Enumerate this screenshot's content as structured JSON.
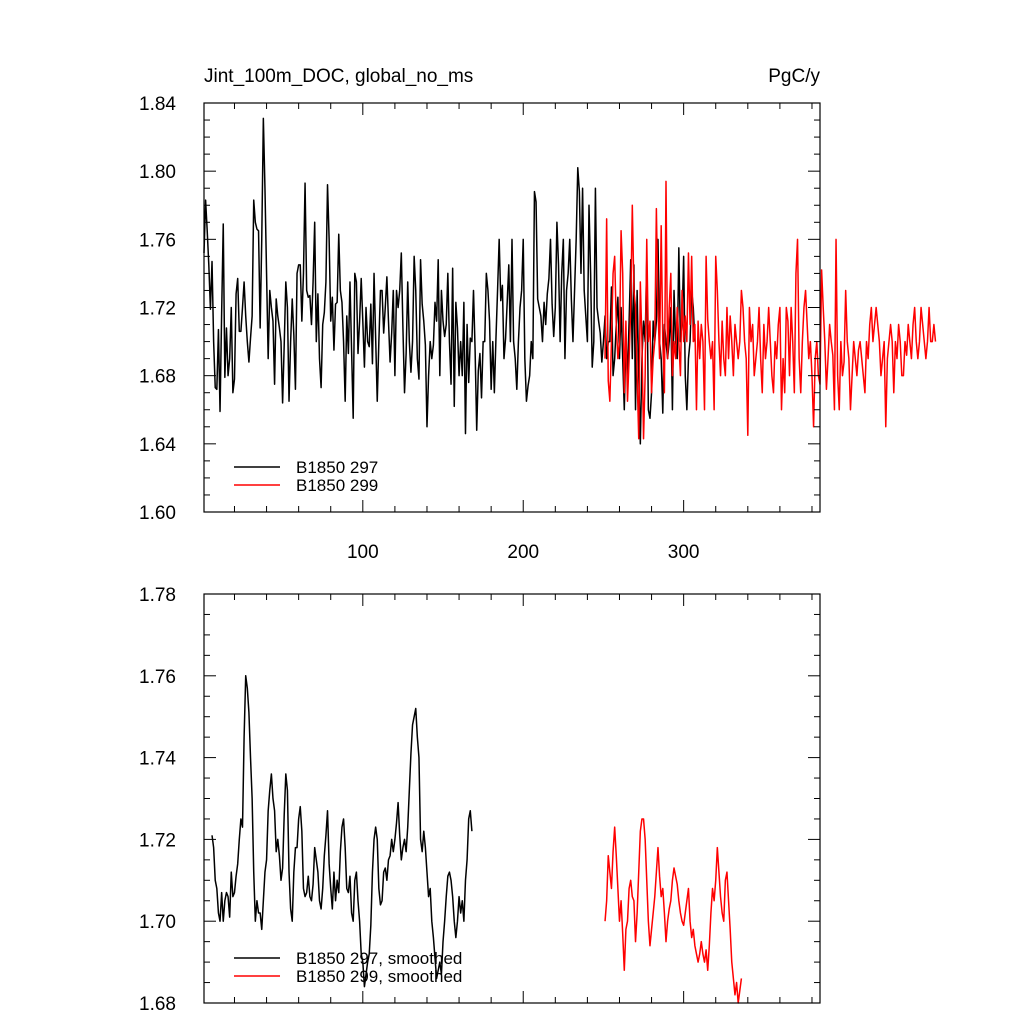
{
  "chart_data": [
    {
      "type": "line",
      "title": "Jint_100m_DOC, global_no_ms",
      "units": "PgC/y",
      "xlim": [
        1,
        385
      ],
      "ylim": [
        1.6,
        1.84
      ],
      "x_ticks": [
        100,
        200,
        300
      ],
      "x_tick_labels": [
        "100",
        "200",
        "300"
      ],
      "y_ticks": [
        1.6,
        1.64,
        1.68,
        1.72,
        1.76,
        1.8,
        1.84
      ],
      "y_tick_labels": [
        "1.60",
        "1.64",
        "1.68",
        "1.72",
        "1.76",
        "1.80",
        "1.84"
      ],
      "legend_position": "bottom-left",
      "series": [
        {
          "name": "B1850 297",
          "color": "#000000",
          "x_start": 1,
          "x_step": 1,
          "values": [
            1.752,
            1.783,
            1.765,
            1.745,
            1.719,
            1.747,
            1.7,
            1.673,
            1.672,
            1.707,
            1.659,
            1.717,
            1.769,
            1.679,
            1.708,
            1.68,
            1.69,
            1.72,
            1.67,
            1.678,
            1.728,
            1.737,
            1.706,
            1.706,
            1.72,
            1.735,
            1.715,
            1.7,
            1.688,
            1.702,
            1.715,
            1.783,
            1.77,
            1.766,
            1.765,
            1.708,
            1.76,
            1.831,
            1.79,
            1.74,
            1.69,
            1.73,
            1.72,
            1.712,
            1.675,
            1.725,
            1.715,
            1.708,
            1.7,
            1.664,
            1.698,
            1.735,
            1.72,
            1.665,
            1.7,
            1.725,
            1.704,
            1.672,
            1.74,
            1.745,
            1.745,
            1.712,
            1.74,
            1.793,
            1.73,
            1.726,
            1.727,
            1.71,
            1.735,
            1.77,
            1.7,
            1.728,
            1.69,
            1.673,
            1.71,
            1.717,
            1.735,
            1.792,
            1.76,
            1.712,
            1.726,
            1.695,
            1.722,
            1.723,
            1.763,
            1.73,
            1.723,
            1.7,
            1.665,
            1.715,
            1.693,
            1.735,
            1.695,
            1.655,
            1.74,
            1.735,
            1.693,
            1.712,
            1.737,
            1.712,
            1.685,
            1.72,
            1.7,
            1.697,
            1.722,
            1.687,
            1.74,
            1.702,
            1.665,
            1.7,
            1.73,
            1.73,
            1.705,
            1.72,
            1.738,
            1.712,
            1.688,
            1.705,
            1.73,
            1.68,
            1.73,
            1.72,
            1.73,
            1.752,
            1.708,
            1.67,
            1.693,
            1.735,
            1.7,
            1.682,
            1.7,
            1.75,
            1.73,
            1.69,
            1.678,
            1.748,
            1.722,
            1.712,
            1.698,
            1.65,
            1.68,
            1.7,
            1.69,
            1.698,
            1.723,
            1.712,
            1.748,
            1.68,
            1.73,
            1.712,
            1.703,
            1.71,
            1.74,
            1.7,
            1.675,
            1.743,
            1.662,
            1.723,
            1.708,
            1.68,
            1.7,
            1.68,
            1.723,
            1.646,
            1.71,
            1.676,
            1.702,
            1.7,
            1.73,
            1.695,
            1.648,
            1.683,
            1.693,
            1.667,
            1.7,
            1.7,
            1.74,
            1.73,
            1.712,
            1.672,
            1.7,
            1.67,
            1.702,
            1.73,
            1.76,
            1.724,
            1.733,
            1.69,
            1.702,
            1.723,
            1.745,
            1.7,
            1.76,
            1.7,
            1.69,
            1.672,
            1.7,
            1.72,
            1.73,
            1.76,
            1.69,
            1.665,
            1.674,
            1.68,
            1.7,
            1.69,
            1.788,
            1.782,
            1.725,
            1.72,
            1.715,
            1.7,
            1.723,
            1.71,
            1.728,
            1.737,
            1.76,
            1.722,
            1.703,
            1.72,
            1.77,
            1.745,
            1.7,
            1.74,
            1.76,
            1.69,
            1.73,
            1.74,
            1.76,
            1.725,
            1.7,
            1.73,
            1.76,
            1.802,
            1.788,
            1.74,
            1.79,
            1.73,
            1.715,
            1.7,
            1.78,
            1.74,
            1.685,
            1.7,
            1.79,
            1.72,
            1.712,
            1.705,
            1.688,
            1.7,
            1.715,
            1.69,
            1.7,
            1.7,
            1.732,
            1.68,
            1.69,
            1.71,
            1.726,
            1.69,
            1.72,
            1.69,
            1.66,
            1.7,
            1.68,
            1.712,
            1.748,
            1.69,
            1.745,
            1.66,
            1.73,
            1.68,
            1.64,
            1.69,
            1.712,
            1.7,
            1.748,
            1.66,
            1.655,
            1.67,
            1.712,
            1.7,
            1.712,
            1.76,
            1.7,
            1.69,
            1.658,
            1.71,
            1.7,
            1.69,
            1.7,
            1.72,
            1.66,
            1.73,
            1.7,
            1.69,
            1.755,
            1.7,
            1.712,
            1.75,
            1.68,
            1.66,
            1.69,
            1.7,
            1.73,
            1.72,
            1.7
          ]
        },
        {
          "name": "B1850 299",
          "color": "#ff0000",
          "x_start": 251,
          "x_step": 1,
          "values": [
            1.69,
            1.772,
            1.677,
            1.665,
            1.7,
            1.74,
            1.75,
            1.71,
            1.69,
            1.7,
            1.765,
            1.74,
            1.67,
            1.712,
            1.665,
            1.69,
            1.72,
            1.78,
            1.73,
            1.72,
            1.68,
            1.643,
            1.735,
            1.7,
            1.643,
            1.68,
            1.76,
            1.7,
            1.712,
            1.67,
            1.69,
            1.7,
            1.778,
            1.72,
            1.69,
            1.768,
            1.7,
            1.67,
            1.794,
            1.69,
            1.72,
            1.74,
            1.68,
            1.7,
            1.69,
            1.72,
            1.7,
            1.68,
            1.73,
            1.7,
            1.715,
            1.7,
            1.752,
            1.71,
            1.75,
            1.7,
            1.71,
            1.66,
            1.712,
            1.69,
            1.71,
            1.7,
            1.66,
            1.75,
            1.713,
            1.7,
            1.69,
            1.7,
            1.66,
            1.75,
            1.73,
            1.7,
            1.68,
            1.712,
            1.69,
            1.68,
            1.72,
            1.69,
            1.715,
            1.7,
            1.68,
            1.71,
            1.7,
            1.69,
            1.7,
            1.73,
            1.72,
            1.7,
            1.69,
            1.645,
            1.72,
            1.7,
            1.71,
            1.68,
            1.69,
            1.7,
            1.72,
            1.69,
            1.67,
            1.71,
            1.69,
            1.7,
            1.72,
            1.7,
            1.68,
            1.67,
            1.7,
            1.69,
            1.71,
            1.72,
            1.66,
            1.69,
            1.67,
            1.72,
            1.712,
            1.68,
            1.72,
            1.7,
            1.67,
            1.74,
            1.76,
            1.69,
            1.67,
            1.7,
            1.72,
            1.73,
            1.71,
            1.69,
            1.7,
            1.68,
            1.65,
            1.69,
            1.7,
            1.68,
            1.675,
            1.742,
            1.72,
            1.7,
            1.672,
            1.69,
            1.71,
            1.7,
            1.692,
            1.66,
            1.76,
            1.68,
            1.66,
            1.7,
            1.68,
            1.688,
            1.73,
            1.7,
            1.69,
            1.66,
            1.68,
            1.7,
            1.69,
            1.68,
            1.695,
            1.7,
            1.69,
            1.68,
            1.67,
            1.7,
            1.69,
            1.71,
            1.72,
            1.7,
            1.71,
            1.72,
            1.71,
            1.7,
            1.68,
            1.69,
            1.7,
            1.65,
            1.69,
            1.7,
            1.71,
            1.7,
            1.67,
            1.7,
            1.69,
            1.71,
            1.7,
            1.68,
            1.68,
            1.7,
            1.692,
            1.71,
            1.7,
            1.69,
            1.71,
            1.72,
            1.7,
            1.69,
            1.7,
            1.72,
            1.71,
            1.7,
            1.69,
            1.7,
            1.72,
            1.7,
            1.7,
            1.71,
            1.7
          ]
        }
      ]
    },
    {
      "type": "line",
      "xlim": [
        1,
        385
      ],
      "ylim": [
        1.68,
        1.78
      ],
      "x_ticks": [
        100,
        200,
        300
      ],
      "y_ticks": [
        1.68,
        1.7,
        1.72,
        1.74,
        1.76,
        1.78
      ],
      "y_tick_labels": [
        "1.68",
        "1.70",
        "1.72",
        "1.74",
        "1.76",
        "1.78"
      ],
      "legend_position": "bottom-left",
      "series": [
        {
          "name": "B1850 297, smoothed",
          "color": "#000000",
          "x_start": 6,
          "x_step": 1,
          "values": [
            1.721,
            1.718,
            1.71,
            1.708,
            1.702,
            1.7,
            1.707,
            1.7,
            1.705,
            1.707,
            1.706,
            1.701,
            1.712,
            1.706,
            1.707,
            1.711,
            1.714,
            1.72,
            1.725,
            1.723,
            1.745,
            1.76,
            1.757,
            1.751,
            1.74,
            1.73,
            1.712,
            1.7,
            1.705,
            1.702,
            1.702,
            1.698,
            1.705,
            1.712,
            1.715,
            1.727,
            1.732,
            1.736,
            1.73,
            1.727,
            1.717,
            1.72,
            1.716,
            1.71,
            1.713,
            1.726,
            1.736,
            1.732,
            1.712,
            1.703,
            1.7,
            1.712,
            1.718,
            1.718,
            1.725,
            1.728,
            1.722,
            1.708,
            1.706,
            1.707,
            1.711,
            1.706,
            1.705,
            1.709,
            1.718,
            1.715,
            1.712,
            1.705,
            1.703,
            1.708,
            1.716,
            1.721,
            1.727,
            1.714,
            1.708,
            1.703,
            1.712,
            1.705,
            1.71,
            1.707,
            1.717,
            1.723,
            1.725,
            1.718,
            1.708,
            1.707,
            1.711,
            1.702,
            1.7,
            1.71,
            1.712,
            1.705,
            1.7,
            1.692,
            1.69,
            1.684,
            1.687,
            1.69,
            1.692,
            1.699,
            1.712,
            1.72,
            1.723,
            1.72,
            1.708,
            1.704,
            1.705,
            1.712,
            1.713,
            1.71,
            1.715,
            1.716,
            1.72,
            1.717,
            1.72,
            1.724,
            1.729,
            1.721,
            1.715,
            1.718,
            1.72,
            1.717,
            1.723,
            1.732,
            1.741,
            1.748,
            1.75,
            1.752,
            1.745,
            1.74,
            1.72,
            1.717,
            1.722,
            1.718,
            1.712,
            1.706,
            1.708,
            1.7,
            1.696,
            1.691,
            1.686,
            1.688,
            1.69,
            1.687,
            1.695,
            1.7,
            1.706,
            1.711,
            1.712,
            1.71,
            1.706,
            1.7,
            1.696,
            1.7,
            1.706,
            1.702,
            1.705,
            1.7,
            1.71,
            1.715,
            1.725,
            1.727,
            1.722
          ]
        },
        {
          "name": "B1850 299, smoothed",
          "color": "#ff0000",
          "x_start": 251,
          "x_step": 1,
          "values": [
            1.7,
            1.705,
            1.716,
            1.712,
            1.708,
            1.717,
            1.723,
            1.716,
            1.708,
            1.7,
            1.705,
            1.697,
            1.688,
            1.698,
            1.7,
            1.708,
            1.71,
            1.706,
            1.705,
            1.695,
            1.702,
            1.712,
            1.722,
            1.725,
            1.725,
            1.72,
            1.71,
            1.7,
            1.694,
            1.698,
            1.702,
            1.706,
            1.712,
            1.718,
            1.711,
            1.706,
            1.708,
            1.702,
            1.695,
            1.7,
            1.703,
            1.705,
            1.71,
            1.713,
            1.711,
            1.709,
            1.705,
            1.702,
            1.7,
            1.699,
            1.702,
            1.705,
            1.708,
            1.7,
            1.696,
            1.698,
            1.694,
            1.692,
            1.69,
            1.692,
            1.695,
            1.692,
            1.69,
            1.693,
            1.688,
            1.694,
            1.702,
            1.708,
            1.705,
            1.71,
            1.718,
            1.712,
            1.706,
            1.702,
            1.7,
            1.71,
            1.712,
            1.705,
            1.698,
            1.69,
            1.686,
            1.682,
            1.685,
            1.68,
            1.683,
            1.686
          ]
        }
      ]
    }
  ]
}
